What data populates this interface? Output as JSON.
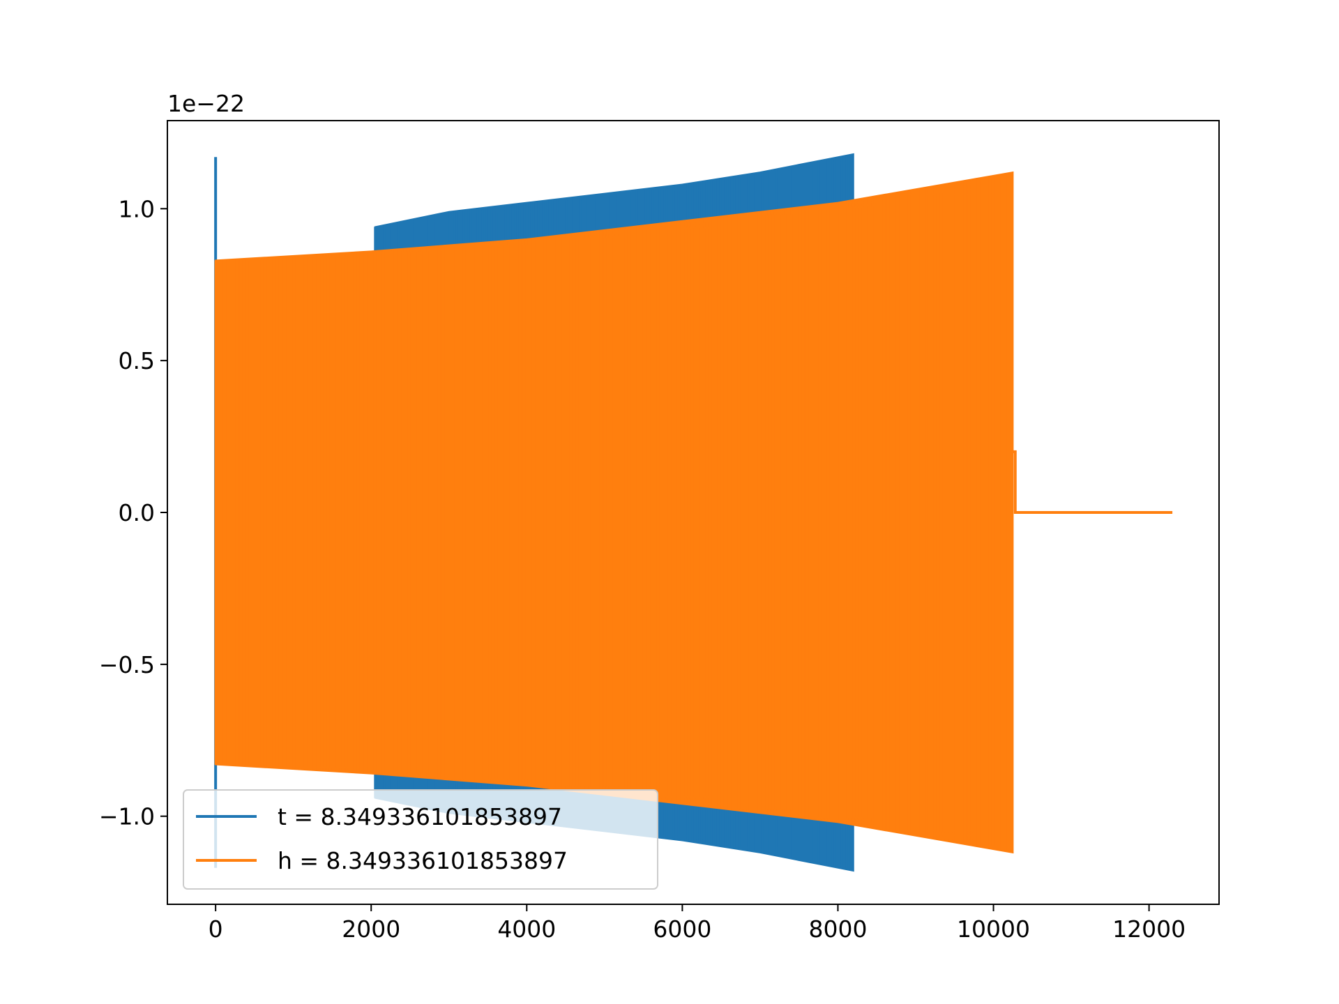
{
  "chart_data": {
    "type": "line",
    "title": "",
    "xlabel": "",
    "ylabel": "",
    "offset_text": "1e−22",
    "xlim": [
      -620,
      12900
    ],
    "ylim": [
      -1.29,
      1.29
    ],
    "y_scale_factor": 1e-22,
    "x_ticks": [
      {
        "value": 0,
        "label": "0"
      },
      {
        "value": 2000,
        "label": "2000"
      },
      {
        "value": 4000,
        "label": "4000"
      },
      {
        "value": 6000,
        "label": "6000"
      },
      {
        "value": 8000,
        "label": "8000"
      },
      {
        "value": 10000,
        "label": "10000"
      },
      {
        "value": 12000,
        "label": "12000"
      }
    ],
    "y_ticks": [
      {
        "value": -1.0,
        "label": "−1.0"
      },
      {
        "value": -0.5,
        "label": "−0.5"
      },
      {
        "value": 0.0,
        "label": "0.0"
      },
      {
        "value": 0.5,
        "label": "0.5"
      },
      {
        "value": 1.0,
        "label": "1.0"
      }
    ],
    "grid": false,
    "legend_position": "lower-left",
    "series": [
      {
        "name": "t = 8.349336101853897",
        "color": "#1f77b4",
        "envelope": [
          {
            "x": 0,
            "y": 1.17
          },
          {
            "x": 2050,
            "y": 0.94
          },
          {
            "x": 3000,
            "y": 0.99
          },
          {
            "x": 4000,
            "y": 1.02
          },
          {
            "x": 5000,
            "y": 1.05
          },
          {
            "x": 6000,
            "y": 1.08
          },
          {
            "x": 7000,
            "y": 1.12
          },
          {
            "x": 8200,
            "y": 1.18
          }
        ]
      },
      {
        "name": "h = 8.349336101853897",
        "color": "#ff7f0e",
        "envelope": [
          {
            "x": 0,
            "y": 0.83
          },
          {
            "x": 2000,
            "y": 0.86
          },
          {
            "x": 4000,
            "y": 0.9
          },
          {
            "x": 6000,
            "y": 0.96
          },
          {
            "x": 8000,
            "y": 1.02
          },
          {
            "x": 10250,
            "y": 1.12
          }
        ],
        "tail": [
          {
            "x": 10280,
            "y": 0.0
          },
          {
            "x": 12300,
            "y": 0.0
          }
        ]
      }
    ]
  }
}
